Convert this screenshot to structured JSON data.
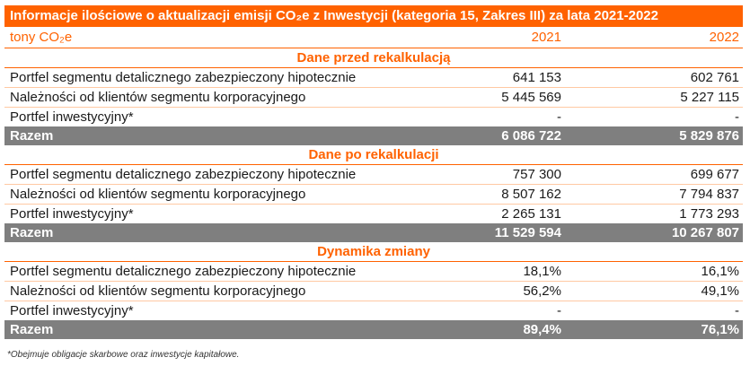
{
  "table": {
    "title": "Informacje ilościowe o aktualizacji emisji CO₂e z Inwestycji (kategoria 15, Zakres III) za lata 2021-2022",
    "unit_label": "tony CO₂e",
    "columns": [
      "2021",
      "2022"
    ],
    "sections": [
      {
        "heading": "Dane przed rekalkulacją",
        "rows": [
          {
            "label": "Portfel segmentu detalicznego zabezpieczony hipotecznie",
            "v2021": "641 153",
            "v2022": "602 761"
          },
          {
            "label": "Należności od klientów segmentu korporacyjnego",
            "v2021": "5 445 569",
            "v2022": "5 227 115"
          },
          {
            "label": "Portfel inwestycyjny*",
            "v2021": "-",
            "v2022": "-"
          }
        ],
        "total": {
          "label": "Razem",
          "v2021": "6 086 722",
          "v2022": "5 829 876"
        }
      },
      {
        "heading": "Dane po rekalkulacji",
        "rows": [
          {
            "label": "Portfel segmentu detalicznego zabezpieczony hipotecznie",
            "v2021": "757 300",
            "v2022": "699 677"
          },
          {
            "label": "Należności od klientów segmentu korporacyjnego",
            "v2021": "8 507 162",
            "v2022": "7 794 837"
          },
          {
            "label": "Portfel inwestycyjny*",
            "v2021": "2 265 131",
            "v2022": "1 773 293"
          }
        ],
        "total": {
          "label": "Razem",
          "v2021": "11 529 594",
          "v2022": "10 267 807"
        }
      },
      {
        "heading": "Dynamika zmiany",
        "rows": [
          {
            "label": "Portfel segmentu detalicznego zabezpieczony hipotecznie",
            "v2021": "18,1%",
            "v2022": "16,1%"
          },
          {
            "label": "Należności od klientów segmentu korporacyjnego",
            "v2021": "56,2%",
            "v2022": "49,1%"
          },
          {
            "label": "Portfel inwestycyjny*",
            "v2021": "-",
            "v2022": "-"
          }
        ],
        "total": {
          "label": "Razem",
          "v2021": "89,4%",
          "v2022": "76,1%"
        }
      }
    ],
    "footnote": "*Obejmuje obligacje skarbowe oraz inwestycje kapitałowe."
  },
  "colors": {
    "accent": "#ff6200",
    "total_row": "#7f7f7f",
    "row_divider": "#ffc9a3"
  }
}
